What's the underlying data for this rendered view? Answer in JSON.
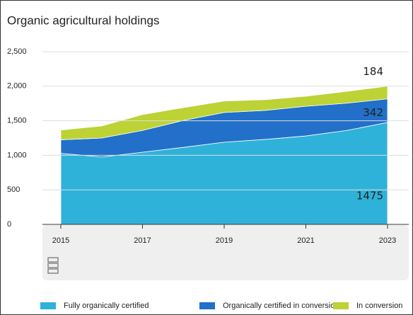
{
  "chart_data": {
    "type": "stacked_area",
    "title": "Organic agricultural holdings",
    "x": [
      2015,
      2016,
      2017,
      2018,
      2019,
      2020,
      2021,
      2022,
      2023
    ],
    "series": [
      {
        "name": "Fully organically certified",
        "color": "#2fb2d9",
        "values": [
          1030,
          975,
          1045,
          1115,
          1190,
          1230,
          1280,
          1360,
          1475
        ]
      },
      {
        "name": "Organically certified in conversion",
        "color": "#2270c9",
        "values": [
          195,
          275,
          315,
          390,
          430,
          420,
          430,
          395,
          342
        ]
      },
      {
        "name": "In conversion",
        "color": "#bcd235",
        "values": [
          140,
          175,
          230,
          185,
          165,
          155,
          145,
          170,
          184
        ]
      }
    ],
    "xlim": [
      2015,
      2023
    ],
    "xticks": [
      2015,
      2017,
      2019,
      2021,
      2023
    ],
    "ylim": [
      0,
      2500
    ],
    "yticks": [
      0,
      500,
      {
        "value": 1000,
        "label": "1,000"
      },
      {
        "value": 1500,
        "label": "1,500"
      },
      {
        "value": 2000,
        "label": "2,000"
      },
      {
        "value": 2500,
        "label": "2,500"
      }
    ],
    "grid": true,
    "legend": "bottom"
  }
}
